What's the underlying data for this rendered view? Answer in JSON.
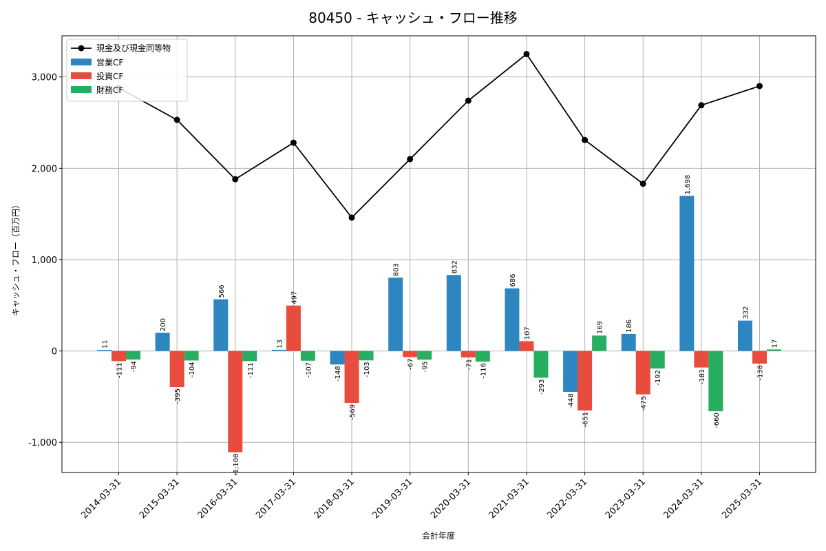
{
  "chart_data": {
    "type": "bar",
    "title": "80450 - キャッシュ・フロー推移",
    "xlabel": "会計年度",
    "ylabel": "キャッシュ・フロー（百万円）",
    "ylim": [
      -1330,
      3450
    ],
    "yticks": [
      -1000,
      0,
      1000,
      2000,
      3000
    ],
    "ytick_labels": [
      "-1,000",
      "0",
      "1,000",
      "2,000",
      "3,000"
    ],
    "grid": true,
    "legend_position": "top-left",
    "categories": [
      "2014-03-31",
      "2015-03-31",
      "2016-03-31",
      "2017-03-31",
      "2018-03-31",
      "2019-03-31",
      "2020-03-31",
      "2021-03-31",
      "2022-03-31",
      "2023-03-31",
      "2024-03-31",
      "2025-03-31"
    ],
    "line_series": {
      "name": "現金及び現金同等物",
      "color": "#000000",
      "values": [
        2880,
        2530,
        1880,
        2280,
        1460,
        2100,
        2740,
        3250,
        2310,
        1830,
        2690,
        2900
      ]
    },
    "series": [
      {
        "name": "営業CF",
        "color": "#2e86c1",
        "values": [
          11,
          200,
          566,
          13,
          -148,
          803,
          832,
          686,
          -448,
          186,
          1698,
          332
        ],
        "labels": [
          "11",
          "200",
          "566",
          "13",
          "-148",
          "803",
          "832",
          "686",
          "-448",
          "186",
          "1,698",
          "332"
        ]
      },
      {
        "name": "投資CF",
        "color": "#e74c3c",
        "values": [
          -111,
          -395,
          -1108,
          497,
          -569,
          -67,
          -71,
          107,
          -651,
          -475,
          -181,
          -138
        ],
        "labels": [
          "-111",
          "-395",
          "-1,108",
          "497",
          "-569",
          "-67",
          "-71",
          "107",
          "-651",
          "-475",
          "-181",
          "-138"
        ]
      },
      {
        "name": "財務CF",
        "color": "#27ae60",
        "values": [
          -94,
          -104,
          -111,
          -107,
          -103,
          -95,
          -116,
          -293,
          169,
          -192,
          -660,
          17
        ],
        "labels": [
          "-94",
          "-104",
          "-111",
          "-107",
          "-103",
          "-95",
          "-116",
          "-293",
          "169",
          "-192",
          "-660",
          "17"
        ]
      }
    ]
  }
}
